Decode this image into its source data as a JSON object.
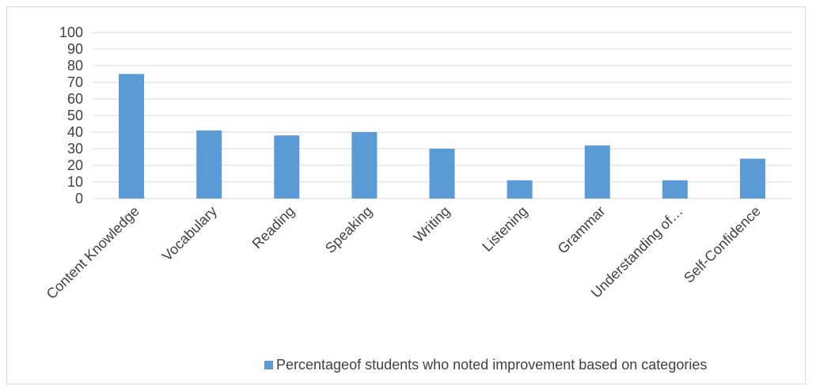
{
  "chart_data": {
    "type": "bar",
    "categories": [
      "Content Knowledge",
      "Vocabulary",
      "Reading",
      "Speaking",
      "Writing",
      "Listening",
      "Grammar",
      "Understanding of…",
      "Self-Confidence"
    ],
    "series": [
      {
        "name": "Percentageof students who noted improvement based on categories",
        "values": [
          75,
          41,
          38,
          40,
          30,
          11,
          32,
          11,
          24
        ]
      }
    ],
    "ylim": [
      0,
      100
    ],
    "yticks": [
      0,
      10,
      20,
      30,
      40,
      50,
      60,
      70,
      80,
      90,
      100
    ],
    "grid": true,
    "legend_position": "bottom",
    "bar_color": "#5b9bd5",
    "grid_color": "#d9d9d9",
    "text_color": "#404040"
  }
}
